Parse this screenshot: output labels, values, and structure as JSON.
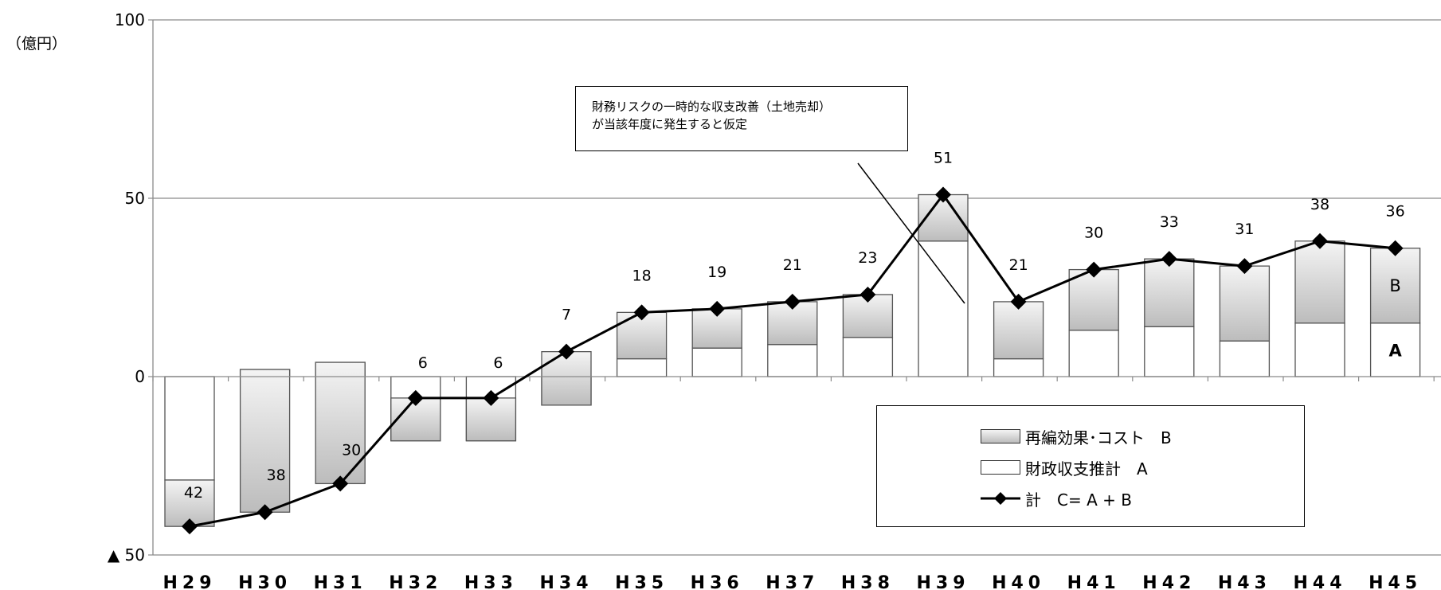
{
  "chart_data": {
    "type": "bar",
    "unit_label": "（億円）",
    "ylim": [
      -50,
      100
    ],
    "y_ticks": [
      {
        "value": 100,
        "label": "100"
      },
      {
        "value": 50,
        "label": "50"
      },
      {
        "value": 0,
        "label": "0"
      },
      {
        "value": -50,
        "label": "▲ 50"
      }
    ],
    "grid": true,
    "categories": [
      "H29",
      "H30",
      "H31",
      "H32",
      "H33",
      "H34",
      "H35",
      "H36",
      "H37",
      "H38",
      "H39",
      "H40",
      "H41",
      "H42",
      "H43",
      "H44",
      "H45"
    ],
    "series": [
      {
        "name": "財政収支推計　A",
        "values": [
          -29,
          2,
          4,
          -18,
          -18,
          -8,
          5,
          8,
          9,
          11,
          38,
          5,
          13,
          14,
          10,
          15,
          15
        ]
      },
      {
        "name": "再編効果･コスト　B",
        "values": [
          -13,
          -40,
          -34,
          12,
          12,
          15,
          13,
          11,
          12,
          12,
          13,
          16,
          17,
          19,
          21,
          23,
          21
        ]
      },
      {
        "name": "計　C= A + B",
        "type": "line",
        "values": [
          -42,
          -38,
          -30,
          -6,
          -6,
          7,
          18,
          19,
          21,
          23,
          51,
          21,
          30,
          33,
          31,
          38,
          36
        ]
      }
    ],
    "data_labels": [
      "42",
      "38",
      "30",
      "6",
      "6",
      "7",
      "18",
      "19",
      "21",
      "23",
      "51",
      "21",
      "30",
      "33",
      "31",
      "38",
      "36"
    ],
    "segment_labels": {
      "b": "B",
      "a": "A"
    },
    "annotation": {
      "lines": [
        "財務リスクの一時的な収支改善（土地売却）",
        "が当該年度に発生すると仮定"
      ]
    },
    "legend": {
      "placement": "bottom-right"
    }
  }
}
